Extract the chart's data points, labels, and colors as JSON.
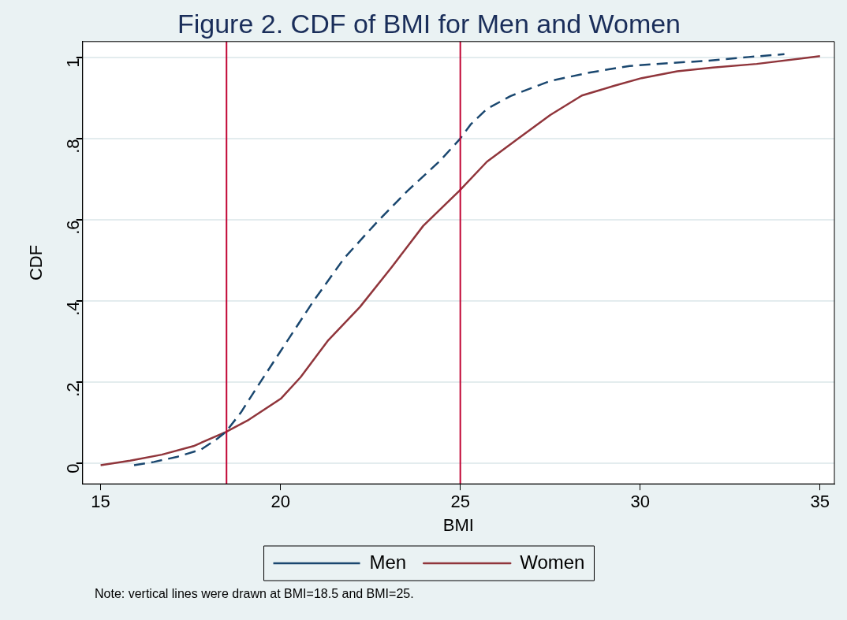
{
  "chart_data": {
    "type": "line",
    "title": "Figure 2. CDF of BMI for Men and Women",
    "xlabel": "BMI",
    "ylabel": "CDF",
    "xlim": [
      14.5,
      35.4
    ],
    "xticks": [
      15,
      20,
      25,
      30,
      35
    ],
    "ylim": [
      -0.05,
      1.04
    ],
    "yticks": [
      0,
      {
        "value": 0.2,
        "label": ".2"
      },
      {
        "value": 0.4,
        "label": ".4"
      },
      {
        "value": 0.6,
        "label": ".6"
      },
      {
        "value": 0.8,
        "label": ".8"
      },
      1
    ],
    "grid": "y",
    "legend": "bottom",
    "marker": "none",
    "series": [
      {
        "name": "Men",
        "color": "#1a476f",
        "line_style": "dashed",
        "x": [
          15.93,
          16.48,
          17.14,
          17.8,
          18.24,
          18.48,
          18.9,
          19.34,
          20.01,
          20.89,
          21.77,
          22.65,
          23.53,
          24.41,
          24.97,
          25.3,
          25.74,
          26.4,
          27.5,
          28.61,
          29.71,
          30.81,
          31.91,
          33.02,
          34.01
        ],
        "values": [
          -0.004,
          0.004,
          0.017,
          0.035,
          0.061,
          0.078,
          0.126,
          0.187,
          0.278,
          0.397,
          0.506,
          0.592,
          0.672,
          0.744,
          0.798,
          0.837,
          0.874,
          0.906,
          0.943,
          0.964,
          0.98,
          0.987,
          0.993,
          1.002,
          1.009
        ]
      },
      {
        "name": "Women",
        "color": "#90353b",
        "line_style": "solid",
        "x": [
          15,
          15.82,
          16.7,
          17.58,
          18.48,
          19.12,
          20.01,
          20.56,
          21.33,
          22.21,
          23.09,
          23.97,
          24.97,
          25.74,
          26.62,
          27.5,
          28.38,
          29.27,
          30.04,
          31.03,
          32.02,
          33.24,
          35
        ],
        "values": [
          -0.004,
          0.007,
          0.022,
          0.043,
          0.078,
          0.108,
          0.16,
          0.213,
          0.304,
          0.386,
          0.484,
          0.586,
          0.672,
          0.744,
          0.802,
          0.859,
          0.907,
          0.931,
          0.95,
          0.967,
          0.976,
          0.985,
          1.004
        ]
      }
    ],
    "ref_lines": [
      {
        "axis": "x",
        "value": 18.5,
        "color": "#c10534"
      },
      {
        "axis": "x",
        "value": 25,
        "color": "#c10534"
      }
    ],
    "annotations": [
      "Note: vertical lines were drawn at BMI=18.5 and BMI=25."
    ]
  }
}
